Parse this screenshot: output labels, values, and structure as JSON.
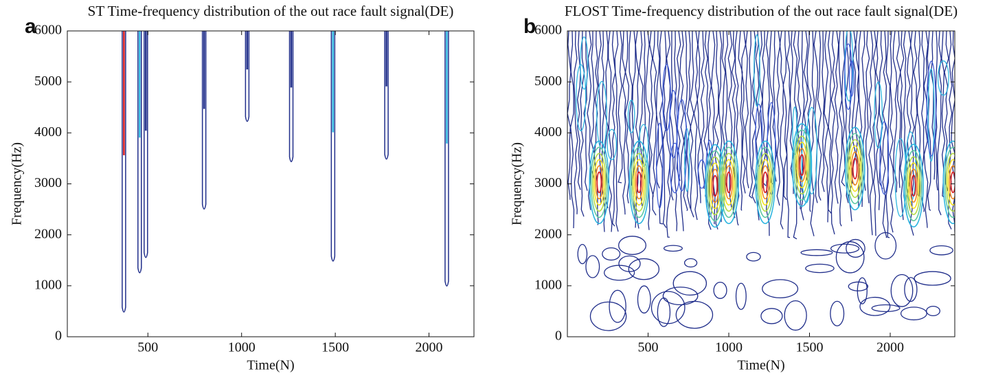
{
  "chart_data": [
    {
      "type": "contour",
      "panel": "a",
      "title": "ST Time-frequency distribution of the out race fault signal(DE)",
      "xlabel": "Time(N)",
      "ylabel": "Frequency(Hz)",
      "x": [
        372,
        456,
        489,
        800,
        1030,
        1265,
        1488,
        1773,
        2095
      ],
      "values": [
        580,
        1350,
        1650,
        2600,
        4320,
        3530,
        1580,
        3580,
        1090
      ],
      "colors": [
        "#d7191c",
        "#2fb6e0",
        "#1f2d8a",
        "#1f2d8a",
        "#1f2d8a",
        "#1f2d8a",
        "#2fb6e0",
        "#1f2d8a",
        "#2fb6e0"
      ],
      "xlim": [
        70,
        2240
      ],
      "ylim": [
        0,
        6000
      ],
      "xticks": [
        500,
        1000,
        1500,
        2000
      ],
      "yticks": [
        0,
        1000,
        2000,
        3000,
        4000,
        5000,
        6000
      ]
    },
    {
      "type": "heatmap",
      "panel": "b",
      "title": "FLOST Time-frequency distribution of the out race fault signal(DE)",
      "xlabel": "Time(N)",
      "ylabel": "Frequency(Hz)",
      "x": [
        197,
        444,
        915,
        1000,
        1226,
        1453,
        1782,
        2145,
        2389
      ],
      "values": [
        3030,
        3030,
        2960,
        3030,
        3030,
        3370,
        3300,
        2965,
        3030
      ],
      "xlim": [
        0,
        2400
      ],
      "ylim": [
        0,
        6000
      ],
      "xticks": [
        500,
        1000,
        1500,
        2000
      ],
      "yticks": [
        0,
        1000,
        2000,
        3000,
        4000,
        5000,
        6000
      ]
    }
  ]
}
